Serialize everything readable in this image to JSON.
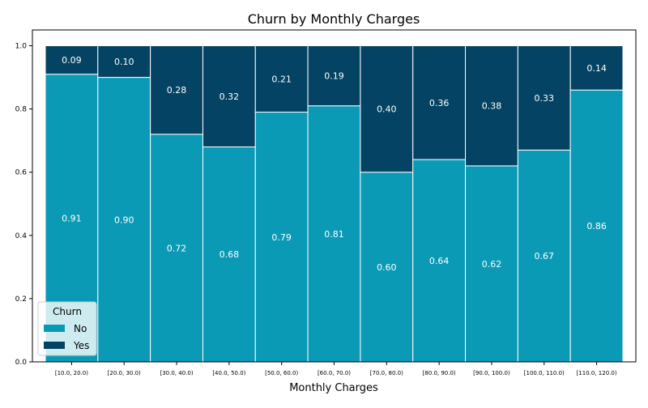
{
  "chart_data": {
    "type": "bar",
    "stacked": true,
    "normalized": true,
    "title": "Churn by Monthly Charges",
    "xlabel": "Monthly Charges",
    "ylabel": "",
    "ylim": [
      0,
      1.05
    ],
    "yticks": [
      "0.0",
      "0.2",
      "0.4",
      "0.6",
      "0.8",
      "1.0"
    ],
    "categories": [
      "[10.0, 20.0)",
      "[20.0, 30.0)",
      "[30.0, 40.0)",
      "[40.0, 50.0)",
      "[50.0, 60.0)",
      "[60.0, 70.0)",
      "[70.0, 80.0)",
      "[80.0, 90.0)",
      "[90.0, 100.0)",
      "[100.0, 110.0)",
      "[110.0, 120.0)"
    ],
    "series": [
      {
        "name": "No",
        "color": "#0a9ab5",
        "values": [
          0.91,
          0.9,
          0.72,
          0.68,
          0.79,
          0.81,
          0.6,
          0.64,
          0.62,
          0.67,
          0.86
        ]
      },
      {
        "name": "Yes",
        "color": "#044363",
        "values": [
          0.09,
          0.1,
          0.28,
          0.32,
          0.21,
          0.19,
          0.4,
          0.36,
          0.38,
          0.33,
          0.14
        ]
      }
    ],
    "data_labels": {
      "No": [
        "0.91",
        "0.90",
        "0.72",
        "0.68",
        "0.79",
        "0.81",
        "0.60",
        "0.64",
        "0.62",
        "0.67",
        "0.86"
      ],
      "Yes": [
        "0.09",
        "0.10",
        "0.28",
        "0.32",
        "0.21",
        "0.19",
        "0.40",
        "0.36",
        "0.38",
        "0.33",
        "0.14"
      ]
    },
    "legend": {
      "title": "Churn",
      "position": "lower-left"
    },
    "grid": false
  }
}
